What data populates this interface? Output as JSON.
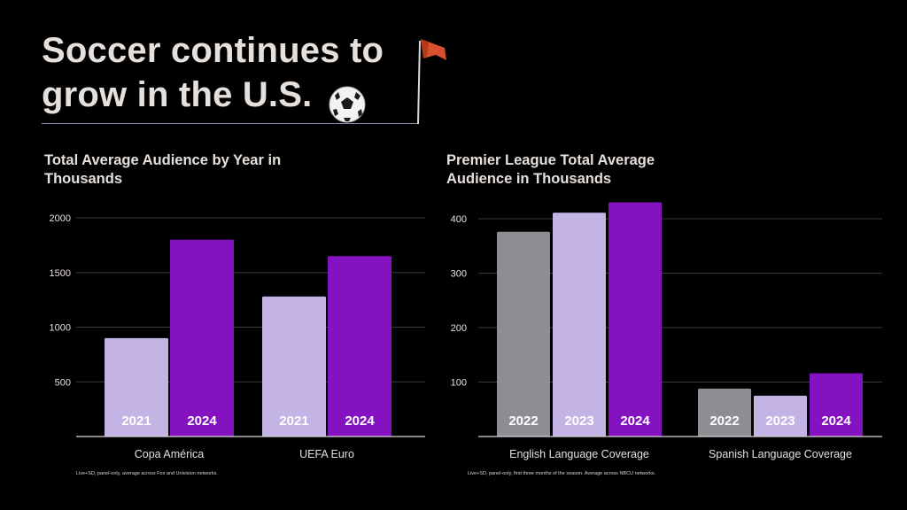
{
  "title": "Soccer continues to grow in the U.S.",
  "icons": [
    "corner-flag-icon",
    "soccer-ball-icon"
  ],
  "colors": {
    "background": "#000000",
    "light_purple": "#c4b3e5",
    "purple": "#8412c0",
    "gray": "#8f8c94",
    "title_text": "#e6e0dc"
  },
  "chart_data": [
    {
      "type": "bar",
      "title": "Total Average Audience by Year in Thousands",
      "ylim": [
        0,
        2000
      ],
      "yticks": [
        500,
        1000,
        1500,
        2000
      ],
      "grid": true,
      "categories": [
        "Copa América",
        "UEFA Euro"
      ],
      "groups": [
        {
          "category": "Copa América",
          "bars": [
            {
              "label": "2021",
              "value": 900,
              "color": "#c4b3e5"
            },
            {
              "label": "2024",
              "value": 1800,
              "color": "#8412c0"
            }
          ]
        },
        {
          "category": "UEFA Euro",
          "bars": [
            {
              "label": "2021",
              "value": 1280,
              "color": "#c4b3e5"
            },
            {
              "label": "2024",
              "value": 1650,
              "color": "#8412c0"
            }
          ]
        }
      ],
      "footnote": "Live+SD, panel-only, average across Fox and Univision networks."
    },
    {
      "type": "bar",
      "title": "Premier League Total Average Audience in Thousands",
      "ylim": [
        0,
        400
      ],
      "yticks": [
        100,
        200,
        300,
        400
      ],
      "grid": true,
      "categories": [
        "English Language Coverage",
        "Spanish Language Coverage"
      ],
      "groups": [
        {
          "category": "English Language Coverage",
          "bars": [
            {
              "label": "2022",
              "value": 376,
              "color": "#8f8c94"
            },
            {
              "label": "2023",
              "value": 411,
              "color": "#c4b3e5"
            },
            {
              "label": "2024",
              "value": 430,
              "color": "#8412c0"
            }
          ]
        },
        {
          "category": "Spanish Language Coverage",
          "bars": [
            {
              "label": "2022",
              "value": 88,
              "color": "#8f8c94"
            },
            {
              "label": "2023",
              "value": 75,
              "color": "#c4b3e5"
            },
            {
              "label": "2024",
              "value": 116,
              "color": "#8412c0"
            }
          ]
        }
      ],
      "footnote": "Live+SD, panel-only, first three months of the season. Average across NBCU networks."
    }
  ]
}
